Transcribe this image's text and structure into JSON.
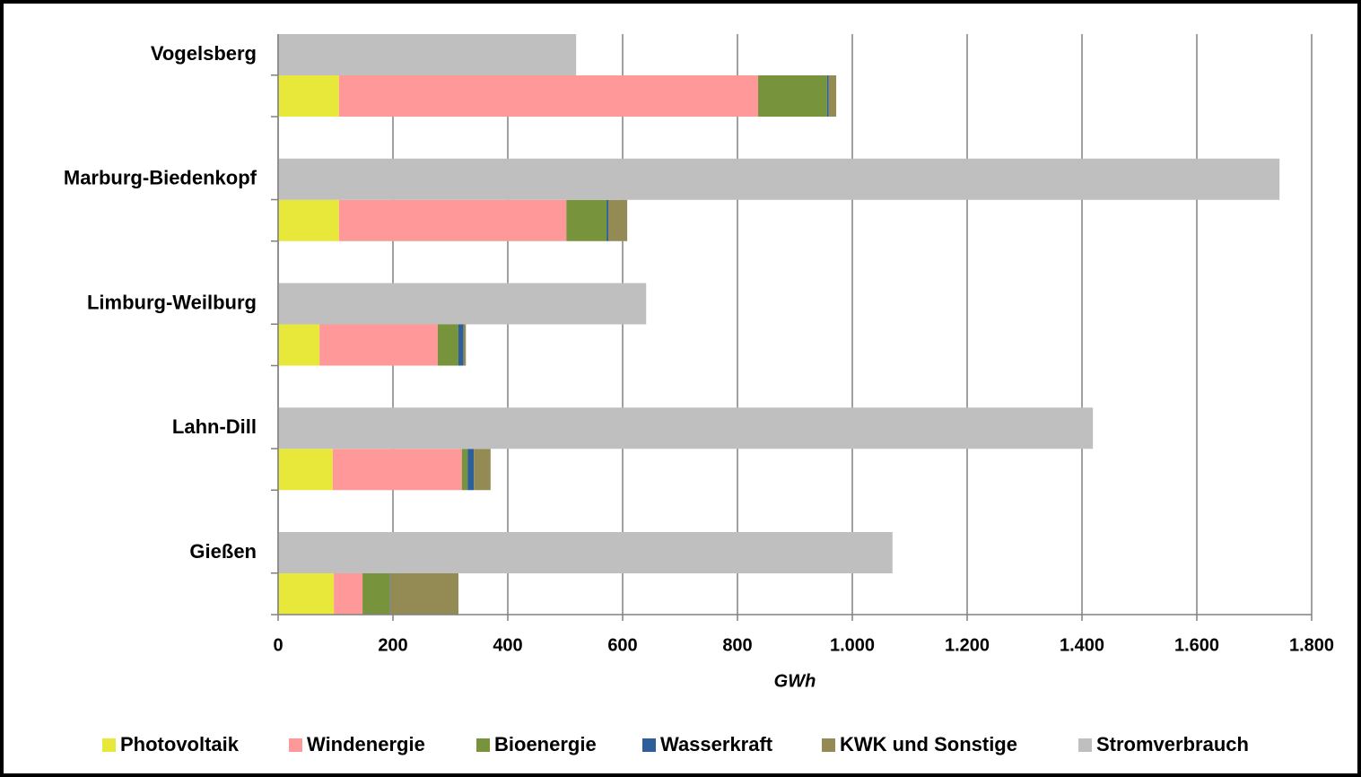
{
  "chart_data": {
    "type": "bar",
    "orientation": "horizontal",
    "x_axis_label": "GWh",
    "categories": [
      "Vogelsberg",
      "Marburg-Biedenkopf",
      "Limburg-Weilburg",
      "Lahn-Dill",
      "Gießen"
    ],
    "series": [
      {
        "name": "Photovoltaik",
        "color": "#e8e83a",
        "stack": "erzeugung",
        "values": [
          106,
          106,
          72,
          95,
          97
        ]
      },
      {
        "name": "Windenergie",
        "color": "#ff9999",
        "stack": "erzeugung",
        "values": [
          730,
          396,
          206,
          225,
          50
        ]
      },
      {
        "name": "Bioenergie",
        "color": "#77933c",
        "stack": "erzeugung",
        "values": [
          120,
          70,
          36,
          10,
          47
        ]
      },
      {
        "name": "Wasserkraft",
        "color": "#2f5f98",
        "stack": "erzeugung",
        "values": [
          3,
          3,
          9,
          11,
          1
        ]
      },
      {
        "name": "KWK und Sonstige",
        "color": "#948a54",
        "stack": "erzeugung",
        "values": [
          13,
          33,
          4,
          29,
          119
        ]
      },
      {
        "name": "Stromverbrauch",
        "color": "#bfbfbf",
        "stack": "verbrauch",
        "values": [
          519,
          1744,
          641,
          1419,
          1070
        ]
      }
    ],
    "xlim": [
      0,
      1800
    ],
    "xticks": [
      0,
      200,
      400,
      600,
      800,
      {
        "value": 1000,
        "label": "1.000"
      },
      {
        "value": 1200,
        "label": "1.200"
      },
      {
        "value": 1400,
        "label": "1.400"
      },
      {
        "value": 1600,
        "label": "1.600"
      },
      {
        "value": 1800,
        "label": "1.800"
      }
    ],
    "grid": true,
    "legend": "bottom"
  }
}
